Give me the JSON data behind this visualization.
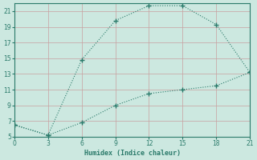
{
  "line1_x": [
    0,
    3,
    6,
    9,
    12,
    15,
    18,
    21
  ],
  "line1_y": [
    6.5,
    5.2,
    14.8,
    19.8,
    21.7,
    21.7,
    19.3,
    13.2
  ],
  "line2_x": [
    0,
    3,
    6,
    9,
    12,
    15,
    18,
    21
  ],
  "line2_y": [
    6.5,
    5.2,
    6.8,
    9.0,
    10.5,
    11.0,
    11.5,
    13.2
  ],
  "line_color": "#2a7a6a",
  "bg_color": "#cce8e0",
  "grid_color": "#b8d8d0",
  "xlabel": "Humidex (Indice chaleur)",
  "xlim": [
    0,
    21
  ],
  "ylim": [
    5,
    22
  ],
  "xticks": [
    0,
    3,
    6,
    9,
    12,
    15,
    18,
    21
  ],
  "yticks": [
    5,
    7,
    9,
    11,
    13,
    15,
    17,
    19,
    21
  ]
}
